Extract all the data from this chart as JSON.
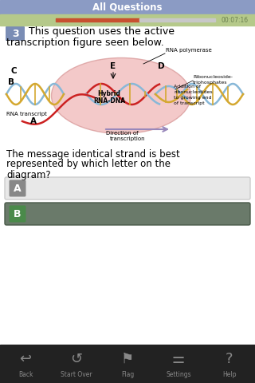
{
  "title": "All Questions",
  "timer": "00:07:16",
  "title_bg": "#8b9bc4",
  "progress_bar_bg": "#b5c98a",
  "progress_orange": "#c85030",
  "progress_gray": "#c8c8c8",
  "question_num": "3",
  "question_num_bg": "#7a8db5",
  "body_bg": "#f5f5f5",
  "answer_A_bg": "#e8e8e8",
  "answer_B_bg": "#6a7a6a",
  "answer_B_icon_bg": "#4a8a4a",
  "answer_A_icon_bg": "#888888",
  "bottom_bar_bg": "#222222",
  "bottom_icon_color": "#888888",
  "bottom_icons": [
    "Back",
    "Start Over",
    "Flag",
    "Settings",
    "Help"
  ],
  "ellipse_color": "#f0b8b8",
  "helix_blue": "#88b8d8",
  "helix_gold": "#d4a830",
  "helix_red": "#cc2222",
  "arrow_purple": "#9988bb"
}
